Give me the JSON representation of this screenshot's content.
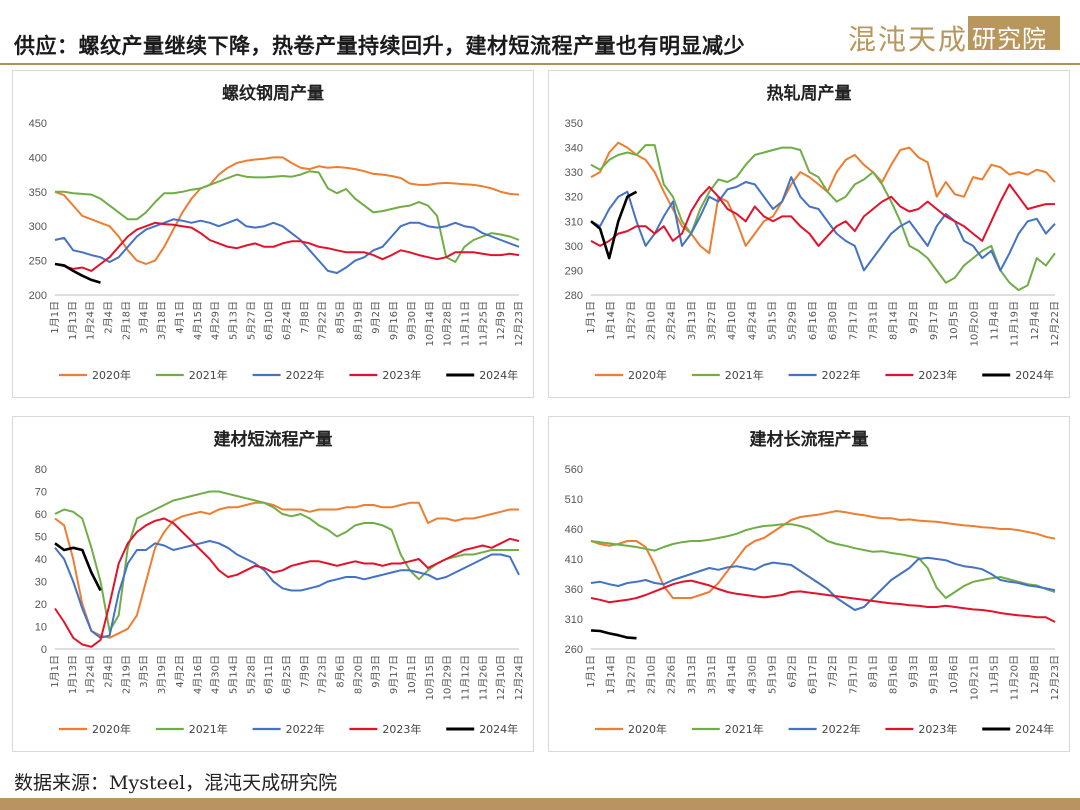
{
  "header": {
    "title": "供应：螺纹产量继续下降，热卷产量持续回升，建材短流程产量也有明显减少",
    "logo_text": "混沌天成",
    "logo_box_text": "研究院"
  },
  "source": "数据来源：Mysteel，混沌天成研究院",
  "colors": {
    "series": [
      "#ed7d31",
      "#70ad47",
      "#4472c4",
      "#e3122b",
      "#000000"
    ],
    "accent": "#b8975c"
  },
  "chart_data": [
    {
      "type": "line",
      "title": "螺纹钢周产量",
      "ylim": [
        200,
        450
      ],
      "yticks": [
        200,
        250,
        300,
        350,
        400,
        450
      ],
      "xticks": [
        "1月1日",
        "1月13日",
        "1月24日",
        "2月4日",
        "2月18日",
        "3月4日",
        "3月18日",
        "4月1日",
        "4月15日",
        "4月29日",
        "5月13日",
        "5月27日",
        "6月10日",
        "6月24日",
        "7月8日",
        "7月22日",
        "8月5日",
        "8月19日",
        "9月2日",
        "9月16日",
        "9月30日",
        "10月14日",
        "10月28日",
        "11月11日",
        "11月25日",
        "12月9日",
        "12月23日"
      ],
      "npoints": 52,
      "legend": [
        "2020年",
        "2021年",
        "2022年",
        "2023年",
        "2024年"
      ],
      "series": [
        {
          "name": "2020年",
          "values": [
            350,
            345,
            330,
            315,
            310,
            305,
            300,
            285,
            265,
            250,
            245,
            250,
            270,
            295,
            320,
            340,
            355,
            360,
            375,
            385,
            392,
            395,
            397,
            398,
            400,
            400,
            392,
            385,
            383,
            387,
            385,
            386,
            385,
            383,
            380,
            376,
            375,
            373,
            370,
            362,
            360,
            360,
            362,
            363,
            362,
            361,
            360,
            358,
            355,
            350,
            347,
            346
          ]
        },
        {
          "name": "2021年",
          "values": [
            350,
            350,
            348,
            347,
            346,
            340,
            330,
            320,
            310,
            310,
            320,
            335,
            348,
            348,
            350,
            353,
            355,
            360,
            365,
            370,
            375,
            372,
            371,
            371,
            372,
            373,
            372,
            375,
            380,
            378,
            355,
            348,
            354,
            340,
            330,
            320,
            322,
            325,
            328,
            330,
            335,
            330,
            315,
            255,
            248,
            270,
            280,
            285,
            290,
            288,
            285,
            280
          ]
        },
        {
          "name": "2022年",
          "values": [
            280,
            283,
            265,
            262,
            258,
            255,
            248,
            255,
            270,
            285,
            295,
            300,
            305,
            310,
            308,
            305,
            308,
            305,
            300,
            305,
            310,
            300,
            298,
            300,
            305,
            300,
            290,
            280,
            265,
            250,
            235,
            232,
            240,
            250,
            255,
            265,
            270,
            285,
            300,
            305,
            305,
            300,
            298,
            300,
            305,
            300,
            298,
            290,
            285,
            280,
            275,
            270
          ]
        },
        {
          "name": "2023年",
          "values": [
            245,
            242,
            238,
            240,
            235,
            245,
            255,
            270,
            285,
            295,
            300,
            305,
            303,
            302,
            300,
            298,
            290,
            280,
            275,
            270,
            268,
            272,
            275,
            270,
            270,
            275,
            278,
            278,
            275,
            270,
            268,
            265,
            262,
            262,
            262,
            258,
            252,
            258,
            265,
            262,
            258,
            255,
            252,
            255,
            262,
            262,
            262,
            260,
            258,
            258,
            260,
            258
          ]
        },
        {
          "name": "2024年",
          "values": [
            245,
            243,
            235,
            228,
            222,
            218
          ]
        }
      ]
    },
    {
      "type": "line",
      "title": "热轧周产量",
      "ylim": [
        280,
        350
      ],
      "yticks": [
        280,
        290,
        300,
        310,
        320,
        330,
        340,
        350
      ],
      "xticks": [
        "1月1日",
        "1月14日",
        "1月27日",
        "2月10日",
        "2月24日",
        "3月13日",
        "3月27日",
        "4月10日",
        "4月24日",
        "5月15日",
        "5月29日",
        "6月16日",
        "6月30日",
        "7月17日",
        "7月31日",
        "8月14日",
        "9月2日",
        "9月17日",
        "10月5日",
        "10月20日",
        "11月4日",
        "11月19日",
        "12月4日",
        "12月22日"
      ],
      "npoints": 52,
      "legend": [
        "2020年",
        "2021年",
        "2022年",
        "2023年",
        "2024年"
      ],
      "series": [
        {
          "name": "2020年",
          "values": [
            328,
            330,
            338,
            342,
            340,
            337,
            335,
            330,
            322,
            315,
            308,
            305,
            300,
            297,
            320,
            318,
            310,
            300,
            305,
            310,
            312,
            318,
            325,
            330,
            328,
            325,
            322,
            330,
            335,
            337,
            333,
            330,
            326,
            333,
            339,
            340,
            336,
            334,
            320,
            326,
            321,
            320,
            328,
            327,
            333,
            332,
            329,
            330,
            329,
            331,
            330,
            326
          ]
        },
        {
          "name": "2021年",
          "values": [
            333,
            331,
            335,
            337,
            338,
            337,
            341,
            341,
            325,
            320,
            310,
            305,
            315,
            322,
            327,
            326,
            328,
            333,
            337,
            338,
            339,
            340,
            340,
            339,
            330,
            328,
            322,
            318,
            320,
            325,
            327,
            330,
            325,
            318,
            310,
            300,
            298,
            295,
            290,
            285,
            287,
            292,
            295,
            298,
            300,
            290,
            285,
            282,
            284,
            295,
            292,
            297
          ]
        },
        {
          "name": "2022年",
          "values": [
            310,
            308,
            315,
            320,
            322,
            310,
            300,
            305,
            312,
            318,
            300,
            305,
            312,
            320,
            318,
            323,
            324,
            326,
            325,
            320,
            315,
            318,
            328,
            320,
            316,
            315,
            310,
            305,
            302,
            300,
            290,
            295,
            300,
            305,
            308,
            310,
            305,
            300,
            308,
            313,
            310,
            302,
            300,
            295,
            298,
            290,
            297,
            305,
            310,
            311,
            305,
            309
          ]
        },
        {
          "name": "2023年",
          "values": [
            302,
            300,
            302,
            305,
            306,
            308,
            308,
            305,
            308,
            302,
            305,
            314,
            320,
            324,
            320,
            315,
            313,
            310,
            316,
            312,
            310,
            312,
            312,
            308,
            305,
            300,
            304,
            308,
            310,
            306,
            312,
            315,
            318,
            320,
            316,
            314,
            315,
            318,
            315,
            312,
            310,
            308,
            305,
            302,
            310,
            318,
            325,
            320,
            315,
            316,
            317,
            317
          ]
        },
        {
          "name": "2024年",
          "values": [
            310,
            307,
            295,
            310,
            320,
            322
          ]
        }
      ]
    },
    {
      "type": "line",
      "title": "建材短流程产量",
      "ylim": [
        0,
        80
      ],
      "yticks": [
        0,
        10,
        20,
        30,
        40,
        50,
        60,
        70,
        80
      ],
      "xticks": [
        "1月1日",
        "1月13日",
        "1月24日",
        "2月4日",
        "2月19日",
        "3月5日",
        "3月19日",
        "4月2日",
        "4月16日",
        "4月30日",
        "5月14日",
        "5月28日",
        "6月11日",
        "6月25日",
        "7月9日",
        "7月23日",
        "8月6日",
        "8月20日",
        "9月3日",
        "9月17日",
        "10月1日",
        "10月15日",
        "10月29日",
        "11月12日",
        "11月26日",
        "12月10日",
        "12月24日"
      ],
      "npoints": 52,
      "legend": [
        "2020年",
        "2021年",
        "2022年",
        "2023年",
        "2024年"
      ],
      "series": [
        {
          "name": "2020年",
          "values": [
            58,
            55,
            40,
            20,
            8,
            6,
            5,
            7,
            9,
            15,
            30,
            45,
            52,
            57,
            59,
            60,
            61,
            60,
            62,
            63,
            63,
            64,
            65,
            65,
            64,
            62,
            62,
            62,
            61,
            62,
            62,
            62,
            63,
            63,
            64,
            64,
            63,
            63,
            64,
            65,
            65,
            56,
            58,
            58,
            57,
            58,
            58,
            59,
            60,
            61,
            62,
            62
          ]
        },
        {
          "name": "2021年",
          "values": [
            60,
            62,
            61,
            58,
            45,
            30,
            8,
            15,
            45,
            58,
            60,
            62,
            64,
            66,
            67,
            68,
            69,
            70,
            70,
            69,
            68,
            67,
            66,
            65,
            63,
            60,
            59,
            60,
            58,
            55,
            53,
            50,
            52,
            55,
            56,
            56,
            55,
            53,
            42,
            35,
            31,
            35,
            38,
            40,
            41,
            42,
            42,
            43,
            44,
            44,
            44,
            44
          ]
        },
        {
          "name": "2022年",
          "values": [
            45,
            40,
            30,
            18,
            8,
            5,
            6,
            25,
            38,
            44,
            44,
            47,
            46,
            44,
            45,
            46,
            47,
            48,
            47,
            45,
            42,
            40,
            38,
            35,
            30,
            27,
            26,
            26,
            27,
            28,
            30,
            31,
            32,
            32,
            31,
            32,
            33,
            34,
            35,
            35,
            34,
            33,
            31,
            32,
            34,
            36,
            38,
            40,
            42,
            42,
            41,
            33
          ]
        },
        {
          "name": "2023年",
          "values": [
            18,
            12,
            5,
            2,
            1,
            4,
            20,
            38,
            47,
            52,
            55,
            57,
            58,
            56,
            52,
            48,
            44,
            40,
            35,
            32,
            33,
            35,
            37,
            36,
            34,
            35,
            37,
            38,
            39,
            39,
            38,
            37,
            38,
            39,
            38,
            38,
            37,
            38,
            38,
            39,
            40,
            36,
            38,
            40,
            42,
            44,
            45,
            46,
            45,
            47,
            49,
            48
          ]
        },
        {
          "name": "2024年",
          "values": [
            47,
            44,
            45,
            44,
            34,
            26
          ]
        }
      ]
    },
    {
      "type": "line",
      "title": "建材长流程产量",
      "ylim": [
        260,
        560
      ],
      "yticks": [
        260,
        310,
        360,
        410,
        460,
        510,
        560
      ],
      "xticks": [
        "1月1日",
        "1月14日",
        "1月27日",
        "2月10日",
        "2月26日",
        "3月13日",
        "3月31日",
        "4月14日",
        "4月30日",
        "5月19日",
        "6月2日",
        "6月17日",
        "7月2日",
        "7月17日",
        "8月1日",
        "8月16日",
        "9月3日",
        "9月18日",
        "10月6日",
        "10月21日",
        "11月5日",
        "11月20日",
        "12月8日",
        "12月23日"
      ],
      "npoints": 52,
      "legend": [
        "2020年",
        "2021年",
        "2022年",
        "2023年",
        "2024年"
      ],
      "series": [
        {
          "name": "2020年",
          "values": [
            440,
            435,
            432,
            435,
            440,
            440,
            430,
            400,
            365,
            345,
            345,
            345,
            350,
            355,
            370,
            390,
            410,
            430,
            440,
            445,
            455,
            465,
            475,
            480,
            482,
            484,
            487,
            490,
            488,
            485,
            483,
            480,
            478,
            478,
            475,
            476,
            474,
            473,
            472,
            470,
            468,
            466,
            465,
            463,
            462,
            460,
            460,
            458,
            455,
            452,
            447,
            444
          ]
        },
        {
          "name": "2021年",
          "values": [
            440,
            438,
            436,
            434,
            432,
            430,
            427,
            424,
            430,
            435,
            438,
            440,
            440,
            442,
            445,
            448,
            452,
            458,
            462,
            465,
            466,
            468,
            468,
            465,
            460,
            450,
            440,
            435,
            432,
            428,
            425,
            422,
            423,
            420,
            418,
            415,
            412,
            395,
            362,
            345,
            355,
            365,
            372,
            375,
            378,
            380,
            376,
            372,
            368,
            366,
            360,
            355
          ]
        },
        {
          "name": "2022年",
          "values": [
            370,
            372,
            368,
            365,
            370,
            372,
            375,
            370,
            368,
            375,
            380,
            385,
            390,
            395,
            392,
            396,
            398,
            395,
            392,
            400,
            404,
            402,
            400,
            390,
            380,
            370,
            360,
            345,
            335,
            325,
            330,
            345,
            360,
            375,
            385,
            395,
            410,
            412,
            410,
            408,
            402,
            398,
            396,
            393,
            385,
            375,
            372,
            370,
            366,
            364,
            361,
            358
          ]
        },
        {
          "name": "2023年",
          "values": [
            345,
            342,
            338,
            340,
            342,
            345,
            350,
            356,
            362,
            368,
            372,
            374,
            370,
            366,
            360,
            355,
            352,
            350,
            348,
            346,
            348,
            350,
            355,
            356,
            354,
            352,
            350,
            348,
            346,
            344,
            342,
            340,
            338,
            336,
            335,
            333,
            332,
            330,
            330,
            332,
            330,
            328,
            326,
            325,
            323,
            320,
            318,
            316,
            315,
            313,
            313,
            305
          ]
        },
        {
          "name": "2024年",
          "values": [
            291,
            290,
            286,
            283,
            279,
            278
          ]
        }
      ]
    }
  ]
}
